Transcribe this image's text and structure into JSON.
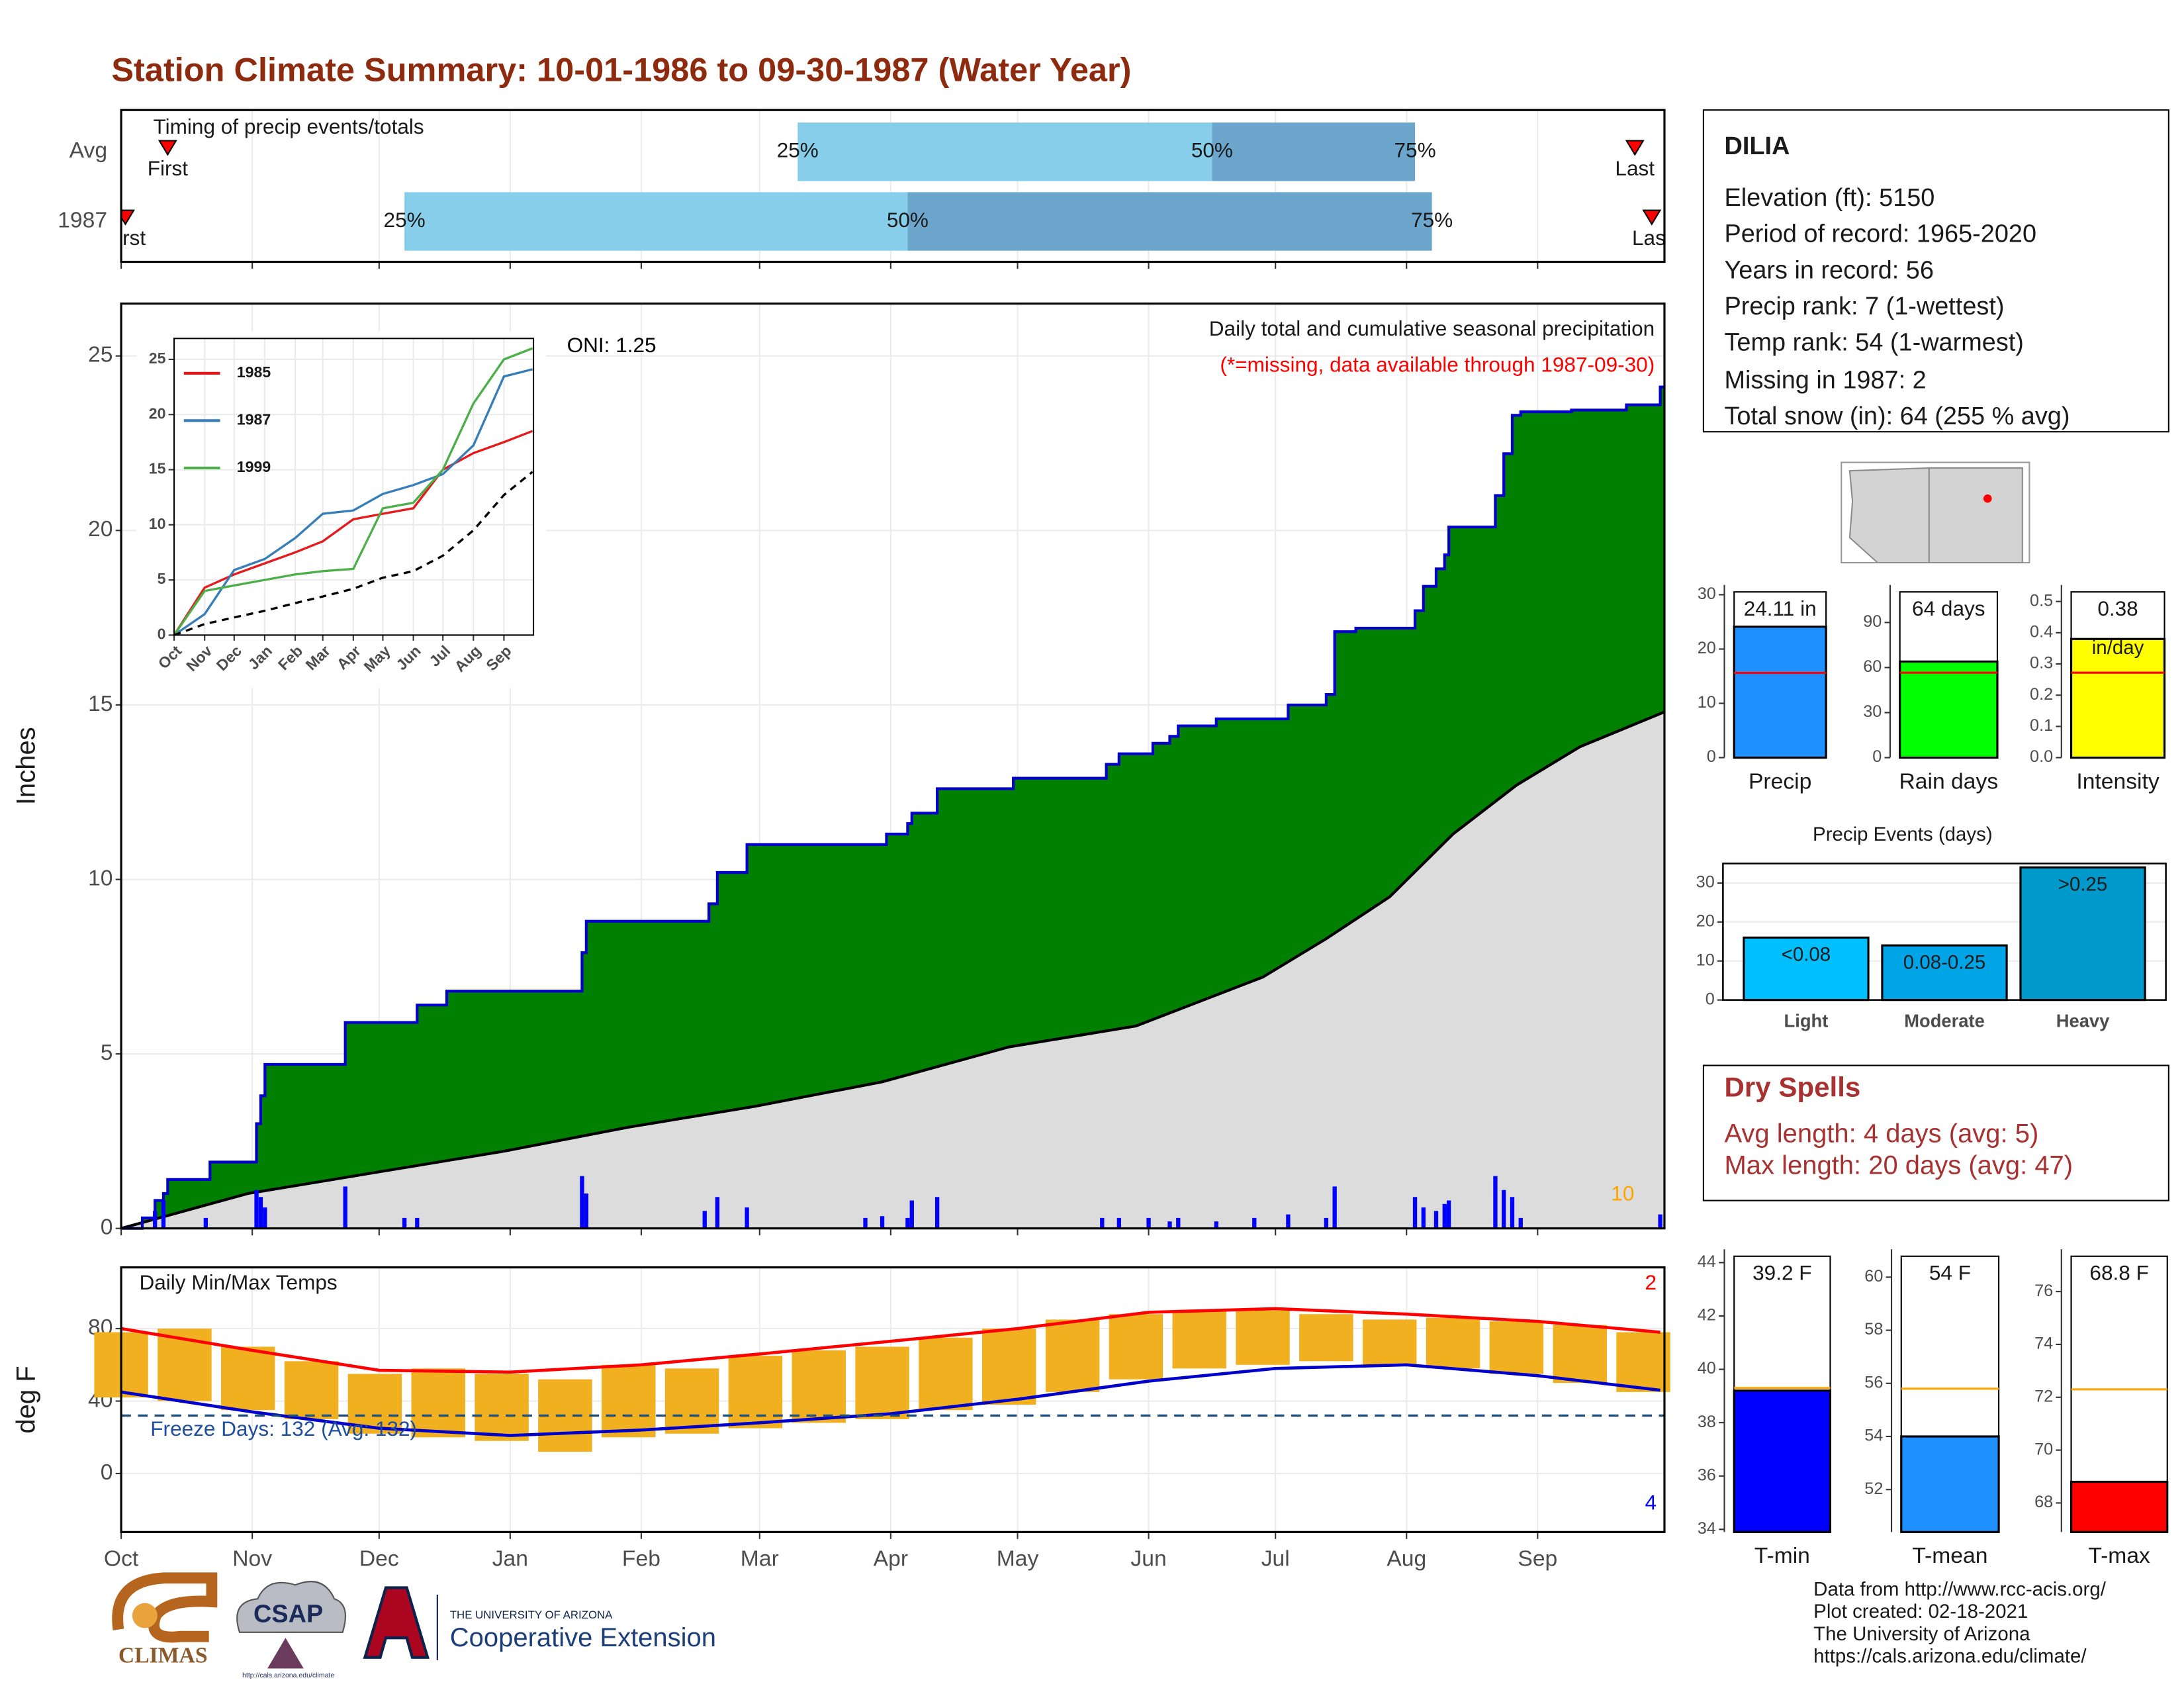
{
  "title": "Station Climate Summary: 10-01-1986 to 09-30-1987 (Water Year)",
  "info": {
    "name": "DILIA",
    "lines": [
      "Elevation (ft): 5150",
      "Period of record: 1965-2020",
      "Years in record: 56",
      "Precip rank: 7 (1-wettest)",
      "Temp rank: 54 (1-warmest)",
      "Missing in 1987: 2",
      "Total snow (in): 64 (255 % avg)"
    ]
  },
  "dry_spells": {
    "title": "Dry Spells",
    "lines": [
      "Avg length: 4 days (avg: 5)",
      "Max length: 20 days (avg: 47)"
    ]
  },
  "footer": [
    "Data from http://www.rcc-acis.org/",
    "Plot created: 02-18-2021",
    "The University of Arizona",
    "https://cals.arizona.edu/climate/"
  ],
  "logos": {
    "climas": "CLIMAS",
    "csap": "CSAP",
    "csap_url": "http://cals.arizona.edu/climate",
    "university": "THE UNIVERSITY OF ARIZONA",
    "extension": "Cooperative Extension"
  },
  "chart_data": [
    {
      "type": "timing",
      "title": "Timing of precip events/totals",
      "categories": [
        "Avg",
        "1987"
      ],
      "first": [
        11,
        1
      ],
      "q25": [
        160,
        67
      ],
      "q50": [
        258,
        186
      ],
      "q75": [
        306,
        310
      ],
      "last": [
        358,
        362
      ],
      "first_label": "First",
      "last_label": "Last",
      "quartile_labels": [
        "25%",
        "50%",
        "75%"
      ],
      "colors": [
        "#87ceeb",
        "#6ca6cd"
      ],
      "marker_color": "#ff0000"
    },
    {
      "type": "cumulative",
      "title": "Daily total and cumulative seasonal precipitation",
      "subtitle": "(*=missing, data available through 1987-09-30)",
      "subtitle_color": "#ff0000",
      "annotations": [
        "ONI: 1.25",
        "10"
      ],
      "annotation_colors": [
        "#000000",
        "#ffa500"
      ],
      "ylabel": "Inches",
      "xlim": [
        0,
        365
      ],
      "xticks": [
        {
          "value": 0,
          "label": "Oct"
        },
        {
          "value": 31,
          "label": "Nov"
        },
        {
          "value": 61,
          "label": "Dec"
        },
        {
          "value": 92,
          "label": "Jan"
        },
        {
          "value": 123,
          "label": "Feb"
        },
        {
          "value": 151,
          "label": "Mar"
        },
        {
          "value": 182,
          "label": "Apr"
        },
        {
          "value": 212,
          "label": "May"
        },
        {
          "value": 243,
          "label": "Jun"
        },
        {
          "value": 273,
          "label": "Jul"
        },
        {
          "value": 304,
          "label": "Aug"
        },
        {
          "value": 335,
          "label": "Sep"
        }
      ],
      "ylim": [
        0,
        26.5
      ],
      "yticks": [
        0,
        5,
        10,
        15,
        20,
        25
      ],
      "grid": true,
      "series": [
        {
          "color": "#008000",
          "line_color": "#0000cc",
          "x": [
            0,
            5,
            8,
            10,
            11,
            21,
            32,
            33,
            34,
            53,
            70,
            77,
            109,
            110,
            139,
            141,
            148,
            181,
            186,
            187,
            193,
            211,
            233,
            236,
            244,
            248,
            250,
            259,
            276,
            285,
            287,
            292,
            306,
            308,
            311,
            313,
            314,
            325,
            327,
            329,
            331,
            343,
            356,
            364
          ],
          "values": [
            0,
            0.3,
            0.8,
            1.0,
            1.4,
            1.9,
            3.0,
            3.8,
            4.7,
            5.9,
            6.4,
            6.8,
            7.9,
            8.8,
            9.3,
            10.2,
            11.0,
            11.3,
            11.6,
            11.9,
            12.6,
            12.9,
            13.3,
            13.6,
            13.9,
            14.1,
            14.4,
            14.6,
            15.0,
            15.3,
            17.1,
            17.2,
            17.7,
            18.4,
            18.9,
            19.3,
            20.1,
            21.0,
            22.2,
            23.3,
            23.4,
            23.45,
            23.6,
            24.11
          ]
        },
        {
          "color": "#dcdcdc",
          "line_color": "#000000",
          "x": [
            0,
            30,
            60,
            90,
            120,
            150,
            180,
            210,
            240,
            270,
            285,
            300,
            315,
            330,
            345,
            365
          ],
          "values": [
            0,
            1.0,
            1.6,
            2.2,
            2.9,
            3.5,
            4.2,
            5.2,
            5.8,
            7.2,
            8.3,
            9.5,
            11.3,
            12.7,
            13.8,
            14.8
          ]
        }
      ],
      "daily": {
        "color": "#0000ff",
        "x": [
          8,
          10,
          20,
          32,
          33,
          34,
          53,
          67,
          70,
          109,
          110,
          138,
          141,
          148,
          176,
          180,
          186,
          187,
          193,
          232,
          236,
          243,
          248,
          250,
          259,
          268,
          276,
          285,
          287,
          306,
          308,
          311,
          313,
          314,
          325,
          327,
          329,
          331,
          364
        ],
        "values": [
          0.5,
          0.8,
          0.3,
          1.1,
          0.9,
          0.6,
          1.2,
          0.3,
          0.3,
          1.5,
          1.0,
          0.5,
          0.9,
          0.6,
          0.3,
          0.35,
          0.3,
          0.8,
          0.9,
          0.3,
          0.3,
          0.3,
          0.2,
          0.3,
          0.2,
          0.3,
          0.4,
          0.3,
          1.2,
          0.9,
          0.6,
          0.5,
          0.7,
          0.8,
          1.5,
          1.1,
          0.9,
          0.3,
          0.4
        ]
      }
    },
    {
      "type": "line",
      "xlim": [
        0,
        365
      ],
      "xticks": [
        {
          "value": 0,
          "label": "Oct"
        },
        {
          "value": 31,
          "label": "Nov"
        },
        {
          "value": 61,
          "label": "Dec"
        },
        {
          "value": 92,
          "label": "Jan"
        },
        {
          "value": 123,
          "label": "Feb"
        },
        {
          "value": 151,
          "label": "Mar"
        },
        {
          "value": 182,
          "label": "Apr"
        },
        {
          "value": 212,
          "label": "May"
        },
        {
          "value": 243,
          "label": "Jun"
        },
        {
          "value": 273,
          "label": "Jul"
        },
        {
          "value": 304,
          "label": "Aug"
        },
        {
          "value": 335,
          "label": "Sep"
        }
      ],
      "ylim": [
        0,
        26.9
      ],
      "yticks": [
        0,
        5,
        10,
        15,
        20,
        25
      ],
      "grid": true,
      "x": [
        0,
        31,
        61,
        92,
        123,
        151,
        182,
        212,
        243,
        273,
        304,
        335,
        364
      ],
      "series": [
        {
          "name": "1985",
          "color": "#e41a1c",
          "values": [
            0,
            4.3,
            5.5,
            6.5,
            7.5,
            8.5,
            10.5,
            11,
            11.5,
            15,
            16.5,
            17.5,
            18.5
          ]
        },
        {
          "name": "1987",
          "color": "#377eb8",
          "values": [
            0,
            1.9,
            5.9,
            6.9,
            8.8,
            11.0,
            11.3,
            12.8,
            13.6,
            14.6,
            17.2,
            23.45,
            24.1
          ]
        },
        {
          "name": "1999",
          "color": "#4daf4a",
          "values": [
            0,
            4.0,
            4.5,
            5.0,
            5.5,
            5.8,
            6.0,
            11.5,
            12.0,
            15.0,
            21.0,
            25.0,
            26.0
          ]
        },
        {
          "color": "#000000",
          "dash": true,
          "values": [
            0,
            1.0,
            1.6,
            2.2,
            2.9,
            3.5,
            4.2,
            5.2,
            5.8,
            7.2,
            9.5,
            12.7,
            14.8
          ]
        }
      ]
    },
    {
      "type": "temperature",
      "title": "Daily Min/Max Temps",
      "ylabel": "deg F",
      "annotations": [
        "Freeze Days: 132 (Avg: 132)",
        "2",
        "4"
      ],
      "annotation_colors": [
        "#1f4e9f",
        "#ff0000",
        "#0000ff"
      ],
      "ylim": [
        -32.3,
        113.8
      ],
      "yticks": [
        0,
        40,
        80
      ],
      "grid": true,
      "freeze_threshold": 32,
      "freeze_color": "#1f4e79",
      "normal_x": [
        0,
        31,
        61,
        92,
        123,
        151,
        182,
        212,
        243,
        273,
        304,
        335,
        364
      ],
      "normal_max": [
        80,
        68,
        57,
        56,
        60,
        66,
        73,
        80,
        89,
        91,
        88,
        84,
        78
      ],
      "normal_max_color": "#ff0000",
      "normal_min": [
        45,
        34,
        25,
        21,
        24,
        28,
        33,
        41,
        51,
        58,
        60,
        54,
        46
      ],
      "normal_min_color": "#0000cc",
      "daily_x": [
        0,
        15,
        30,
        45,
        60,
        75,
        90,
        105,
        120,
        135,
        150,
        165,
        180,
        195,
        210,
        225,
        240,
        255,
        270,
        285,
        300,
        315,
        330,
        345,
        360
      ],
      "daily_max": [
        78,
        80,
        70,
        62,
        55,
        58,
        55,
        52,
        60,
        58,
        65,
        68,
        70,
        75,
        80,
        85,
        88,
        90,
        90,
        88,
        85,
        86,
        84,
        82,
        78
      ],
      "daily_min": [
        42,
        40,
        35,
        30,
        22,
        20,
        18,
        12,
        20,
        22,
        25,
        28,
        30,
        35,
        38,
        45,
        52,
        58,
        60,
        62,
        60,
        58,
        55,
        50,
        45
      ],
      "daily_color": "#f0b020"
    },
    {
      "type": "bar",
      "categories": [
        "Precip"
      ],
      "values": [
        24.11
      ],
      "value_labels": [
        "24.11 in"
      ],
      "color": "#1e90ff",
      "reference": 15.6,
      "reference_color": "#ff0000",
      "ylim": [
        0,
        31.8
      ],
      "yticks": [
        0,
        10,
        20,
        30
      ]
    },
    {
      "type": "bar",
      "categories": [
        "Rain days"
      ],
      "values": [
        64
      ],
      "value_labels": [
        "64 days"
      ],
      "color": "#00ff00",
      "reference": 56.6,
      "reference_color": "#ff0000",
      "ylim": [
        0,
        115
      ],
      "yticks": [
        0,
        30,
        60,
        90
      ]
    },
    {
      "type": "bar",
      "categories": [
        "Intensity"
      ],
      "values": [
        0.38
      ],
      "unit_label": "in/day",
      "color": "#ffff00",
      "reference": 0.272,
      "reference_color": "#ff0000",
      "ylim": [
        0,
        0.553
      ],
      "yticks": [
        {
          "value": 0,
          "label": "0.0"
        },
        0.1,
        0.2,
        0.3,
        0.4,
        0.5
      ]
    },
    {
      "type": "events",
      "title": "Precip Events (days)",
      "categories": [
        "Light",
        "Moderate",
        "Heavy"
      ],
      "values": [
        16,
        14,
        34
      ],
      "bar_labels": [
        "<0.08",
        "0.08-0.25",
        ">0.25"
      ],
      "colors": [
        "#00bfff",
        "#00a5e8",
        "#0099cc"
      ],
      "ylim": [
        0,
        35
      ],
      "yticks": [
        0,
        10,
        20,
        30
      ],
      "grid": true
    },
    {
      "type": "bar",
      "categories": [
        "T-min"
      ],
      "values": [
        39.2
      ],
      "value_labels": [
        "39.2 F"
      ],
      "color": "#0000ff",
      "reference": 39.3,
      "reference_color": "#ffa500",
      "ylim": [
        33.9,
        44.5
      ],
      "yticks": [
        34,
        36,
        38,
        40,
        42,
        44
      ]
    },
    {
      "type": "bar",
      "categories": [
        "T-mean"
      ],
      "values": [
        54
      ],
      "value_labels": [
        "54 F"
      ],
      "color": "#1e90ff",
      "reference": 55.8,
      "reference_color": "#ffa500",
      "ylim": [
        50.4,
        61.05
      ],
      "yticks": [
        52,
        54,
        56,
        58,
        60
      ]
    },
    {
      "type": "bar",
      "categories": [
        "T-max"
      ],
      "values": [
        68.8
      ],
      "value_labels": [
        "68.8 F"
      ],
      "color": "#ff0000",
      "reference": 72.3,
      "reference_color": "#ffa500",
      "ylim": [
        66.9,
        77.6
      ],
      "yticks": [
        68,
        70,
        72,
        74,
        76
      ]
    }
  ]
}
